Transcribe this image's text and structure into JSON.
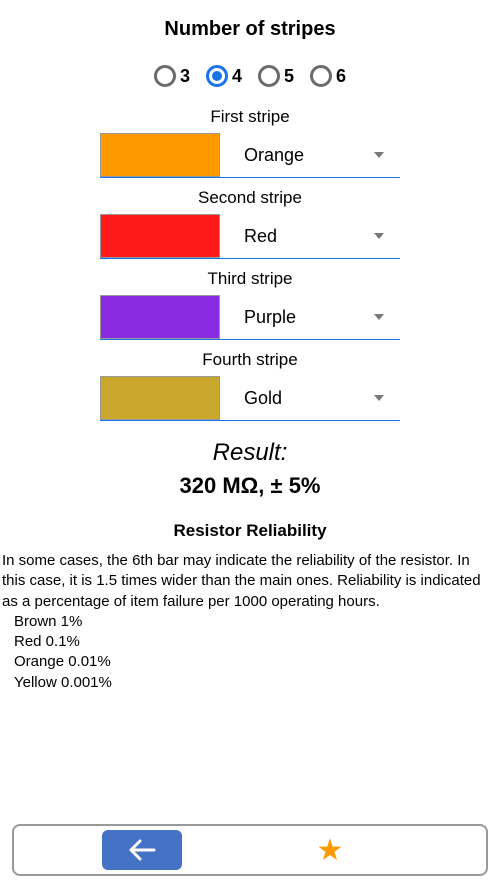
{
  "header": {
    "title": "Number of stripes"
  },
  "radios": {
    "options": [
      "3",
      "4",
      "5",
      "6"
    ],
    "selected": "4"
  },
  "stripes": [
    {
      "title": "First stripe",
      "color_name": "Orange",
      "color_hex": "#ff9900"
    },
    {
      "title": "Second stripe",
      "color_name": "Red",
      "color_hex": "#ff1a1a"
    },
    {
      "title": "Third stripe",
      "color_name": "Purple",
      "color_hex": "#8a2be2"
    },
    {
      "title": "Fourth stripe",
      "color_name": "Gold",
      "color_hex": "#c9a82d"
    }
  ],
  "result": {
    "label": "Result:",
    "value": "320 MΩ, ± 5%"
  },
  "reliability": {
    "title": "Resistor Reliability",
    "description": "  In some cases, the 6th bar may indicate the reliability of the resistor. In this case, it is 1.5 times wider than the main ones. Reliability is indicated as a percentage of item failure per 1000 operating hours.",
    "items": [
      "Brown 1%",
      "Red 0.1%",
      "Orange 0.01%",
      "Yellow 0.001%"
    ]
  },
  "colors": {
    "accent": "#1a73e8",
    "back_button_bg": "#4472c4",
    "star_color": "#ff9900"
  }
}
